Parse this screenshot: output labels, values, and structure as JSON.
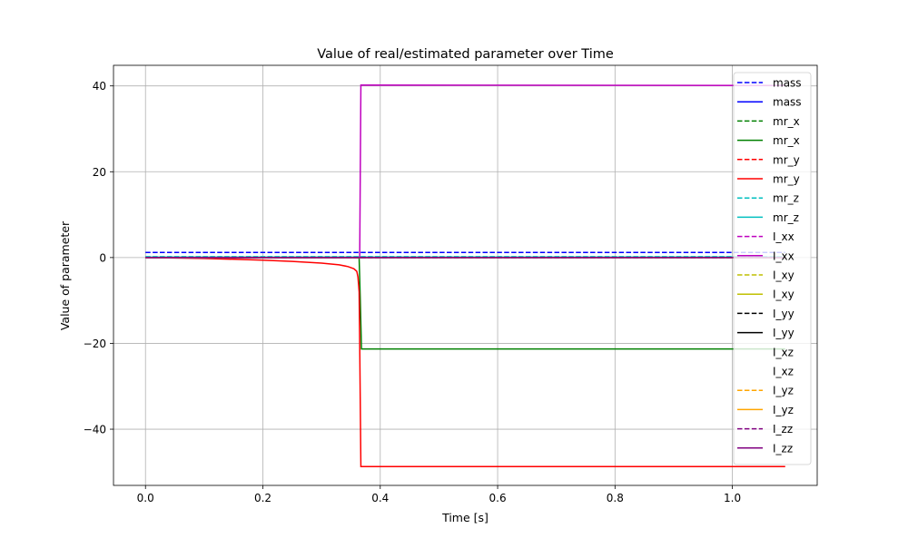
{
  "chart_data": {
    "type": "line",
    "title": "Value of real/estimated parameter over Time",
    "xlabel": "Time [s]",
    "ylabel": "Value of parameter",
    "xlim": [
      -0.0545,
      1.1445
    ],
    "ylim": [
      -53.1,
      44.8
    ],
    "xticks": [
      0.0,
      0.2,
      0.4,
      0.6,
      0.8,
      1.0
    ],
    "xtick_labels": [
      "0.0",
      "0.2",
      "0.4",
      "0.6",
      "0.8",
      "1.0"
    ],
    "yticks": [
      40,
      20,
      0,
      -20,
      -40
    ],
    "ytick_labels": [
      "40",
      "20",
      "0",
      "−20",
      "−40"
    ],
    "grid": true,
    "legend_position": "top-right",
    "series": [
      {
        "name": "mass",
        "color": "#0000ff",
        "style": "dashed",
        "x": [
          0,
          1.09
        ],
        "y": [
          1.2,
          1.2
        ]
      },
      {
        "name": "mass",
        "color": "#0000ff",
        "style": "solid",
        "x": [
          0,
          0.365,
          0.367,
          1.09
        ],
        "y": [
          0,
          0,
          0,
          0
        ]
      },
      {
        "name": "mr_x",
        "color": "#008000",
        "style": "dashed",
        "x": [
          0,
          1.09
        ],
        "y": [
          0,
          0
        ]
      },
      {
        "name": "mr_x",
        "color": "#008000",
        "style": "solid",
        "x": [
          0,
          0.364,
          0.366,
          0.368,
          1.09
        ],
        "y": [
          0,
          0,
          -10,
          -21.3,
          -21.3
        ]
      },
      {
        "name": "mr_y",
        "color": "#ff0000",
        "style": "dashed",
        "x": [
          0,
          1.09
        ],
        "y": [
          0,
          0
        ]
      },
      {
        "name": "mr_y",
        "color": "#ff0000",
        "style": "solid",
        "x": [
          0,
          0.1,
          0.2,
          0.25,
          0.3,
          0.33,
          0.345,
          0.355,
          0.36,
          0.362,
          0.364,
          0.365,
          0.367,
          0.368,
          1.09
        ],
        "y": [
          0,
          -0.2,
          -0.6,
          -0.9,
          -1.3,
          -1.7,
          -2.1,
          -2.6,
          -3.2,
          -4.5,
          -8,
          -20,
          -48.7,
          -48.7,
          -48.7
        ]
      },
      {
        "name": "mr_z",
        "color": "#00bfbf",
        "style": "dashed",
        "x": [
          0,
          1.09
        ],
        "y": [
          0.2,
          0.2
        ]
      },
      {
        "name": "mr_z",
        "color": "#00bfbf",
        "style": "solid",
        "x": [
          0,
          1.09
        ],
        "y": [
          0.1,
          0.1
        ]
      },
      {
        "name": "I_xx",
        "color": "#bf00bf",
        "style": "dashed",
        "x": [
          0,
          1.09
        ],
        "y": [
          0,
          0
        ]
      },
      {
        "name": "I_xx",
        "color": "#bf00bf",
        "style": "solid",
        "x": [
          0,
          0.365,
          0.366,
          0.367,
          1.09
        ],
        "y": [
          0,
          0,
          20,
          40.2,
          40.1
        ]
      },
      {
        "name": "I_xy",
        "color": "#bfbf00",
        "style": "dashed",
        "x": [
          0,
          1.09
        ],
        "y": [
          0,
          0
        ]
      },
      {
        "name": "I_xy",
        "color": "#bfbf00",
        "style": "solid",
        "x": [
          0,
          1.09
        ],
        "y": [
          0,
          0
        ]
      },
      {
        "name": "I_yy",
        "color": "#000000",
        "style": "dashed",
        "x": [
          0,
          1.09
        ],
        "y": [
          0,
          0
        ]
      },
      {
        "name": "I_yy",
        "color": "#000000",
        "style": "solid",
        "x": [
          0,
          1.09
        ],
        "y": [
          0,
          0
        ]
      },
      {
        "name": "I_xz",
        "color": "#ffffff",
        "style": "dashed",
        "x": [
          0,
          1.09
        ],
        "y": [
          0,
          0
        ]
      },
      {
        "name": "I_xz",
        "color": "#ffffff",
        "style": "solid",
        "x": [
          0,
          1.09
        ],
        "y": [
          0,
          0
        ]
      },
      {
        "name": "I_yz",
        "color": "#ffa500",
        "style": "dashed",
        "x": [
          0,
          1.09
        ],
        "y": [
          0,
          0
        ]
      },
      {
        "name": "I_yz",
        "color": "#ffa500",
        "style": "solid",
        "x": [
          0,
          1.09
        ],
        "y": [
          0,
          0
        ]
      },
      {
        "name": "I_zz",
        "color": "#800080",
        "style": "dashed",
        "x": [
          0,
          1.09
        ],
        "y": [
          0,
          0
        ]
      },
      {
        "name": "I_zz",
        "color": "#800080",
        "style": "solid",
        "x": [
          0,
          1.09
        ],
        "y": [
          0,
          0
        ]
      }
    ]
  }
}
